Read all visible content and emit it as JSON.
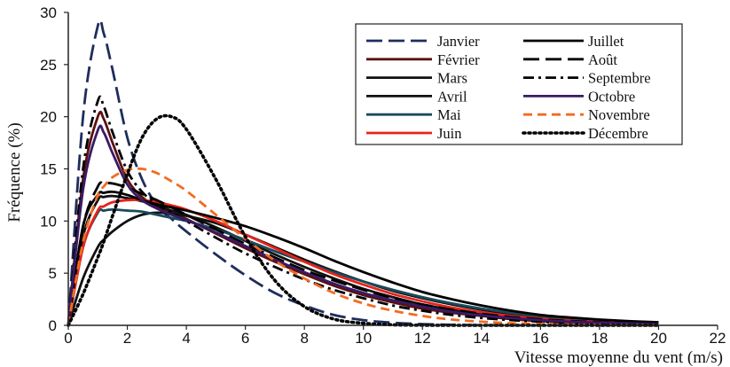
{
  "chart_data": {
    "type": "line",
    "title": "",
    "xlabel": "Vitesse moyenne du vent (m/s)",
    "ylabel": "Fréquence (%)",
    "xlim": [
      0,
      22
    ],
    "ylim": [
      0,
      30
    ],
    "xticks": [
      0,
      2,
      4,
      6,
      8,
      10,
      12,
      14,
      16,
      18,
      20,
      22
    ],
    "yticks": [
      0,
      5,
      10,
      15,
      20,
      25,
      30
    ],
    "grid": false,
    "legend_position": "top-right",
    "x": [
      0,
      0.5,
      1,
      1.2,
      1.5,
      2,
      2.5,
      3,
      3.5,
      4,
      5,
      6,
      7,
      8,
      9,
      10,
      11,
      12,
      13,
      14,
      15,
      16,
      17,
      18,
      19,
      20
    ],
    "series": [
      {
        "name": "Janvier",
        "color": "#1f2d5c",
        "dash": "long-dash",
        "values": [
          0,
          20,
          28.7,
          28.0,
          24.5,
          18.0,
          14.0,
          11.5,
          10.2,
          9.0,
          6.8,
          4.8,
          3.1,
          1.9,
          1.0,
          0.5,
          0.25,
          0.12,
          0.05,
          0.02,
          0,
          0,
          0,
          0,
          0,
          0
        ]
      },
      {
        "name": "Février",
        "color": "#5a1010",
        "dash": "solid",
        "values": [
          0,
          14,
          20.0,
          19.8,
          17.5,
          14.0,
          12.3,
          11.4,
          10.8,
          10.2,
          8.8,
          7.4,
          6.1,
          4.9,
          3.8,
          2.9,
          2.2,
          1.6,
          1.2,
          0.9,
          0.6,
          0.4,
          0.3,
          0.2,
          0.15,
          0.1
        ]
      },
      {
        "name": "Mars",
        "color": "#111111",
        "dash": "solid",
        "values": [
          0,
          8.5,
          12.0,
          12.3,
          12.4,
          12.2,
          11.9,
          11.5,
          11.0,
          10.6,
          9.4,
          8.1,
          6.8,
          5.6,
          4.5,
          3.5,
          2.7,
          2.0,
          1.5,
          1.1,
          0.8,
          0.55,
          0.4,
          0.28,
          0.2,
          0.14
        ]
      },
      {
        "name": "Avril",
        "color": "#111111",
        "dash": "solid",
        "values": [
          0,
          4.5,
          7.5,
          8.2,
          9.0,
          10.0,
          10.6,
          10.8,
          10.7,
          10.5,
          9.8,
          8.7,
          7.5,
          6.3,
          5.2,
          4.2,
          3.3,
          2.6,
          2.0,
          1.5,
          1.1,
          0.8,
          0.6,
          0.45,
          0.33,
          0.24
        ]
      },
      {
        "name": "Mai",
        "color": "#1b4a5c",
        "dash": "solid",
        "values": [
          0,
          7.5,
          10.8,
          11.0,
          11.1,
          11.0,
          10.9,
          10.6,
          10.3,
          10.0,
          9.2,
          8.2,
          7.1,
          6.1,
          5.1,
          4.2,
          3.4,
          2.7,
          2.1,
          1.6,
          1.2,
          0.9,
          0.65,
          0.48,
          0.35,
          0.25
        ]
      },
      {
        "name": "Juin",
        "color": "#e8231b",
        "dash": "solid",
        "values": [
          0,
          7.5,
          11.0,
          11.4,
          11.8,
          12.0,
          12.0,
          11.8,
          11.5,
          11.1,
          10.0,
          8.7,
          7.4,
          6.1,
          4.9,
          3.9,
          3.0,
          2.3,
          1.7,
          1.25,
          0.9,
          0.65,
          0.45,
          0.32,
          0.22,
          0.15
        ]
      },
      {
        "name": "Juillet",
        "color": "#000000",
        "dash": "solid",
        "values": [
          0,
          9.5,
          12.5,
          12.7,
          12.8,
          12.5,
          12.0,
          11.6,
          11.3,
          11.0,
          10.3,
          9.5,
          8.5,
          7.4,
          6.2,
          5.1,
          4.1,
          3.2,
          2.5,
          1.9,
          1.4,
          1.0,
          0.75,
          0.55,
          0.4,
          0.3
        ]
      },
      {
        "name": "Août",
        "color": "#000000",
        "dash": "long-dash",
        "values": [
          0,
          9.5,
          13.3,
          13.6,
          13.6,
          13.2,
          12.6,
          12.0,
          11.3,
          10.6,
          9.2,
          7.8,
          6.5,
          5.3,
          4.3,
          3.4,
          2.6,
          2.0,
          1.5,
          1.1,
          0.8,
          0.58,
          0.42,
          0.3,
          0.21,
          0.15
        ]
      },
      {
        "name": "Septembre",
        "color": "#000000",
        "dash": "dash-dot",
        "values": [
          0,
          15,
          21.5,
          21.0,
          18.5,
          14.8,
          12.8,
          11.6,
          10.8,
          10.0,
          8.4,
          6.9,
          5.6,
          4.4,
          3.4,
          2.6,
          1.9,
          1.4,
          1.0,
          0.7,
          0.5,
          0.35,
          0.24,
          0.17,
          0.12,
          0.08
        ]
      },
      {
        "name": "Octobre",
        "color": "#3a1a66",
        "dash": "solid",
        "values": [
          0,
          13,
          18.7,
          18.5,
          16.5,
          13.5,
          12.0,
          11.2,
          10.6,
          10.1,
          8.9,
          7.6,
          6.3,
          5.1,
          4.0,
          3.1,
          2.4,
          1.8,
          1.3,
          0.95,
          0.7,
          0.5,
          0.35,
          0.25,
          0.18,
          0.12
        ]
      },
      {
        "name": "Novembre",
        "color": "#f26b21",
        "dash": "dash",
        "values": [
          0,
          8.0,
          12.5,
          13.3,
          14.2,
          14.9,
          15.0,
          14.6,
          13.8,
          12.9,
          10.6,
          8.3,
          6.2,
          4.5,
          3.1,
          2.1,
          1.4,
          0.9,
          0.55,
          0.35,
          0.2,
          0.12,
          0.07,
          0.04,
          0.02,
          0.01
        ]
      },
      {
        "name": "Décembre",
        "color": "#000000",
        "dash": "dotted",
        "values": [
          0,
          3.0,
          6.5,
          8.0,
          10.5,
          14.5,
          18.0,
          19.8,
          20.0,
          18.8,
          14.0,
          8.5,
          4.3,
          1.8,
          0.6,
          0.2,
          0.05,
          0.01,
          0,
          0,
          0,
          0,
          0,
          0,
          0,
          0
        ]
      }
    ]
  }
}
